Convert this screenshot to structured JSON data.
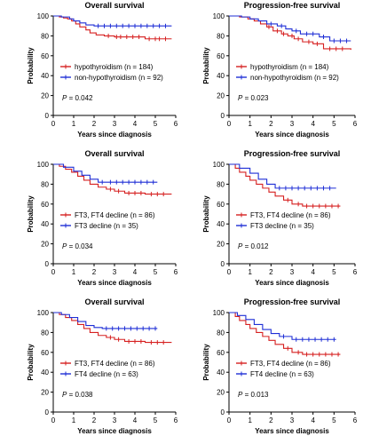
{
  "colors": {
    "red": "#d62020",
    "blue": "#1f2fd6",
    "axis": "#000000"
  },
  "chart_data": [
    {
      "type": "line",
      "title": "Overall survival",
      "xlabel": "Years since diagnosis",
      "ylabel": "Probability",
      "xlim": [
        0,
        6
      ],
      "ylim": [
        0,
        100
      ],
      "xticks": [
        "0",
        "1",
        "2",
        "3",
        "4",
        "5",
        "6"
      ],
      "yticks": [
        "0",
        "20",
        "40",
        "60",
        "80",
        "100"
      ],
      "p_value": "= 0.042",
      "legend_position": "bottom-left",
      "series": [
        {
          "name": "hypothyroidism (n = 184)",
          "color": "red",
          "steps": [
            [
              0,
              100
            ],
            [
              0.3,
              99
            ],
            [
              0.5,
              98
            ],
            [
              0.7,
              97
            ],
            [
              0.9,
              95
            ],
            [
              1.1,
              92
            ],
            [
              1.3,
              89
            ],
            [
              1.6,
              86
            ],
            [
              1.8,
              83
            ],
            [
              2.1,
              81
            ],
            [
              2.5,
              80
            ],
            [
              3.0,
              79
            ],
            [
              4.5,
              77
            ],
            [
              5.8,
              77
            ]
          ],
          "censors": [
            2.7,
            3.1,
            3.3,
            3.6,
            3.9,
            4.2,
            4.7,
            5.0,
            5.2,
            5.5
          ]
        },
        {
          "name": "non-hypothyroidism (n = 92)",
          "color": "blue",
          "steps": [
            [
              0,
              100
            ],
            [
              0.4,
              99
            ],
            [
              0.8,
              97
            ],
            [
              1.0,
              95
            ],
            [
              1.3,
              93
            ],
            [
              1.6,
              91
            ],
            [
              2.0,
              90
            ],
            [
              5.8,
              90
            ]
          ],
          "censors": [
            2.2,
            2.5,
            2.8,
            3.1,
            3.4,
            3.7,
            4.0,
            4.3,
            4.6,
            4.9,
            5.2,
            5.5
          ]
        }
      ]
    },
    {
      "type": "line",
      "title": "Progression-free survival",
      "xlabel": "Years since diagnosis",
      "ylabel": "Probability",
      "xlim": [
        0,
        6
      ],
      "ylim": [
        0,
        100
      ],
      "xticks": [
        "0",
        "1",
        "2",
        "3",
        "4",
        "5",
        "6"
      ],
      "yticks": [
        "0",
        "20",
        "40",
        "60",
        "80",
        "100"
      ],
      "p_value": "= 0.023",
      "legend_position": "bottom-left",
      "series": [
        {
          "name": "hypothyroidism (n = 184)",
          "color": "red",
          "steps": [
            [
              0,
              100
            ],
            [
              0.5,
              99
            ],
            [
              0.9,
              97
            ],
            [
              1.2,
              95
            ],
            [
              1.5,
              92
            ],
            [
              1.8,
              89
            ],
            [
              2.1,
              85
            ],
            [
              2.5,
              82
            ],
            [
              2.8,
              80
            ],
            [
              3.1,
              77
            ],
            [
              3.5,
              74
            ],
            [
              4.0,
              72
            ],
            [
              4.5,
              67
            ],
            [
              5.8,
              66
            ]
          ],
          "censors": [
            1.9,
            2.3,
            2.6,
            3.0,
            3.3,
            3.8,
            4.2,
            4.8,
            5.1,
            5.4
          ]
        },
        {
          "name": "non-hypothyroidism (n = 92)",
          "color": "blue",
          "steps": [
            [
              0,
              100
            ],
            [
              0.6,
              99
            ],
            [
              1.0,
              97
            ],
            [
              1.4,
              95
            ],
            [
              1.8,
              92
            ],
            [
              2.3,
              90
            ],
            [
              2.7,
              87
            ],
            [
              3.0,
              85
            ],
            [
              3.4,
              82
            ],
            [
              4.3,
              79
            ],
            [
              4.8,
              75
            ],
            [
              5.8,
              75
            ]
          ],
          "censors": [
            2.0,
            2.5,
            3.2,
            3.7,
            4.0,
            4.5,
            5.0,
            5.3,
            5.6
          ]
        }
      ]
    },
    {
      "type": "line",
      "title": "Overall survival",
      "xlabel": "Years since diagnosis",
      "ylabel": "Probability",
      "xlim": [
        0,
        6
      ],
      "ylim": [
        0,
        100
      ],
      "xticks": [
        "0",
        "1",
        "2",
        "3",
        "4",
        "5",
        "6"
      ],
      "yticks": [
        "0",
        "20",
        "40",
        "60",
        "80",
        "100"
      ],
      "p_value": "= 0.034",
      "legend_position": "bottom-left",
      "series": [
        {
          "name": "FT3, FT4 decline (n = 86)",
          "color": "red",
          "steps": [
            [
              0,
              100
            ],
            [
              0.3,
              98
            ],
            [
              0.6,
              95
            ],
            [
              0.9,
              92
            ],
            [
              1.2,
              88
            ],
            [
              1.5,
              84
            ],
            [
              1.8,
              80
            ],
            [
              2.2,
              77
            ],
            [
              2.6,
              75
            ],
            [
              3.0,
              73
            ],
            [
              3.5,
              71
            ],
            [
              4.5,
              70
            ],
            [
              5.8,
              70
            ]
          ],
          "censors": [
            2.8,
            3.2,
            3.7,
            4.0,
            4.3,
            4.8,
            5.1,
            5.4
          ]
        },
        {
          "name": "FT3 decline (n = 35)",
          "color": "blue",
          "steps": [
            [
              0,
              100
            ],
            [
              0.5,
              97
            ],
            [
              1.0,
              93
            ],
            [
              1.4,
              89
            ],
            [
              1.8,
              85
            ],
            [
              2.2,
              82
            ],
            [
              5.1,
              82
            ]
          ],
          "censors": [
            2.4,
            2.8,
            3.1,
            3.4,
            3.7,
            4.0,
            4.3,
            4.6,
            4.9
          ]
        }
      ]
    },
    {
      "type": "line",
      "title": "Progression-free survival",
      "xlabel": "Years since diagnosis",
      "ylabel": "Probability",
      "xlim": [
        0,
        6
      ],
      "ylim": [
        0,
        100
      ],
      "xticks": [
        "0",
        "1",
        "2",
        "3",
        "4",
        "5",
        "6"
      ],
      "yticks": [
        "0",
        "20",
        "40",
        "60",
        "80",
        "100"
      ],
      "p_value": "= 0.012",
      "legend_position": "bottom-left",
      "series": [
        {
          "name": "FT3, FT4 decline (n = 86)",
          "color": "red",
          "steps": [
            [
              0,
              100
            ],
            [
              0.3,
              96
            ],
            [
              0.5,
              92
            ],
            [
              0.8,
              88
            ],
            [
              1.0,
              84
            ],
            [
              1.3,
              80
            ],
            [
              1.6,
              76
            ],
            [
              1.9,
              72
            ],
            [
              2.2,
              68
            ],
            [
              2.6,
              64
            ],
            [
              3.0,
              60
            ],
            [
              3.5,
              58
            ],
            [
              5.3,
              58
            ]
          ],
          "censors": [
            2.8,
            3.3,
            3.7,
            4.0,
            4.3,
            4.6,
            4.9,
            5.2
          ]
        },
        {
          "name": "FT3 decline (n = 35)",
          "color": "blue",
          "steps": [
            [
              0,
              100
            ],
            [
              0.5,
              96
            ],
            [
              1.0,
              91
            ],
            [
              1.4,
              85
            ],
            [
              1.8,
              80
            ],
            [
              2.2,
              76
            ],
            [
              5.1,
              76
            ]
          ],
          "censors": [
            2.4,
            2.7,
            3.0,
            3.3,
            3.6,
            3.9,
            4.2,
            4.5,
            4.8
          ]
        }
      ]
    },
    {
      "type": "line",
      "title": "Overall survival",
      "xlabel": "Years since diagnosis",
      "ylabel": "Probability",
      "xlim": [
        0,
        6
      ],
      "ylim": [
        0,
        100
      ],
      "xticks": [
        "0",
        "1",
        "2",
        "3",
        "4",
        "5",
        "6"
      ],
      "yticks": [
        "0",
        "20",
        "40",
        "60",
        "80",
        "100"
      ],
      "p_value": "= 0.038",
      "legend_position": "bottom-left",
      "series": [
        {
          "name": "FT3, FT4 decline (n = 86)",
          "color": "red",
          "steps": [
            [
              0,
              100
            ],
            [
              0.3,
              98
            ],
            [
              0.6,
              95
            ],
            [
              0.9,
              92
            ],
            [
              1.2,
              88
            ],
            [
              1.5,
              84
            ],
            [
              1.8,
              80
            ],
            [
              2.2,
              77
            ],
            [
              2.6,
              75
            ],
            [
              3.0,
              73
            ],
            [
              3.5,
              71
            ],
            [
              4.5,
              70
            ],
            [
              5.8,
              70
            ]
          ],
          "censors": [
            2.8,
            3.2,
            3.7,
            4.0,
            4.3,
            4.8,
            5.1,
            5.4
          ]
        },
        {
          "name": "FT4 decline (n = 63)",
          "color": "blue",
          "steps": [
            [
              0,
              100
            ],
            [
              0.4,
              98
            ],
            [
              0.8,
              95
            ],
            [
              1.2,
              91
            ],
            [
              1.6,
              87
            ],
            [
              2.0,
              85
            ],
            [
              2.4,
              84
            ],
            [
              5.1,
              84
            ]
          ],
          "censors": [
            2.6,
            2.9,
            3.2,
            3.5,
            3.8,
            4.1,
            4.4,
            4.7,
            5.0
          ]
        }
      ]
    },
    {
      "type": "line",
      "title": "Progression-free survival",
      "xlabel": "Years since diagnosis",
      "ylabel": "Probability",
      "xlim": [
        0,
        6
      ],
      "ylim": [
        0,
        100
      ],
      "xticks": [
        "0",
        "1",
        "2",
        "3",
        "4",
        "5",
        "6"
      ],
      "yticks": [
        "0",
        "20",
        "40",
        "60",
        "80",
        "100"
      ],
      "p_value": "= 0.013",
      "legend_position": "bottom-left",
      "series": [
        {
          "name": "FT3, FT4 decline (n = 86)",
          "color": "red",
          "steps": [
            [
              0,
              100
            ],
            [
              0.3,
              96
            ],
            [
              0.5,
              92
            ],
            [
              0.8,
              88
            ],
            [
              1.0,
              84
            ],
            [
              1.3,
              80
            ],
            [
              1.6,
              76
            ],
            [
              1.9,
              72
            ],
            [
              2.2,
              68
            ],
            [
              2.6,
              64
            ],
            [
              3.0,
              60
            ],
            [
              3.5,
              58
            ],
            [
              5.3,
              58
            ]
          ],
          "censors": [
            2.8,
            3.3,
            3.7,
            4.0,
            4.3,
            4.6,
            4.9,
            5.2
          ]
        },
        {
          "name": "FT4 decline (n = 63)",
          "color": "blue",
          "steps": [
            [
              0,
              100
            ],
            [
              0.4,
              97
            ],
            [
              0.8,
              93
            ],
            [
              1.2,
              88
            ],
            [
              1.6,
              83
            ],
            [
              2.0,
              79
            ],
            [
              2.4,
              76
            ],
            [
              3.0,
              73
            ],
            [
              5.1,
              73
            ]
          ],
          "censors": [
            2.6,
            3.2,
            3.5,
            3.8,
            4.1,
            4.4,
            4.7,
            5.0
          ]
        }
      ]
    }
  ]
}
